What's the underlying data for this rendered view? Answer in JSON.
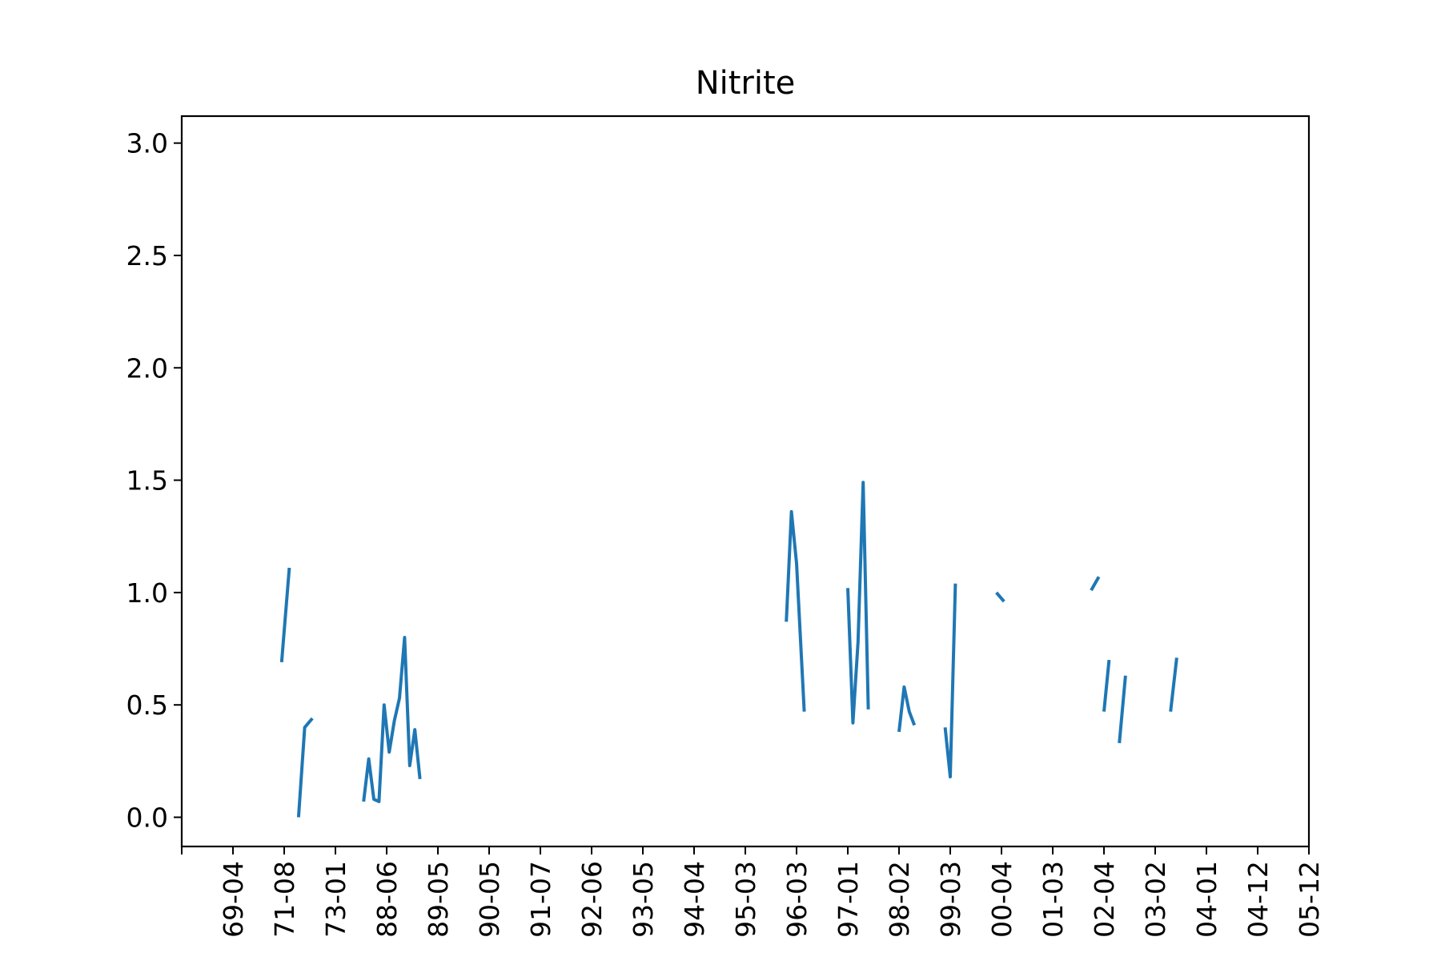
{
  "chart_data": {
    "type": "line",
    "title": "Nitrite",
    "xlabel": "",
    "ylabel": "",
    "ylim": [
      -0.13,
      3.12
    ],
    "grid": false,
    "legend": "none",
    "series_color": "#1f77b4",
    "x_ticks": [
      "69-04",
      "71-08",
      "73-01",
      "88-06",
      "89-05",
      "90-05",
      "91-07",
      "92-06",
      "93-05",
      "94-04",
      "95-03",
      "96-03",
      "97-01",
      "98-02",
      "99-03",
      "00-04",
      "01-03",
      "02-04",
      "03-02",
      "04-01",
      "04-12",
      "05-12"
    ],
    "y_ticks": [
      "0.0",
      "0.5",
      "1.0",
      "1.5",
      "2.0",
      "2.5",
      "3.0"
    ],
    "segments": [
      [
        [
          0.95,
          0.69
        ],
        [
          1.1,
          1.11
        ]
      ],
      [
        [
          1.28,
          0.0
        ],
        [
          1.4,
          0.4
        ],
        [
          1.55,
          0.44
        ]
      ],
      [
        [
          2.55,
          0.07
        ],
        [
          2.65,
          0.26
        ],
        [
          2.75,
          0.08
        ],
        [
          2.85,
          0.07
        ],
        [
          2.95,
          0.5
        ],
        [
          3.05,
          0.29
        ],
        [
          3.15,
          0.43
        ],
        [
          3.25,
          0.53
        ],
        [
          3.35,
          0.8
        ],
        [
          3.45,
          0.23
        ],
        [
          3.55,
          0.39
        ],
        [
          3.65,
          0.17
        ]
      ],
      [
        [
          10.8,
          0.87
        ],
        [
          10.9,
          1.36
        ],
        [
          11.0,
          1.13
        ],
        [
          11.15,
          0.47
        ]
      ],
      [
        [
          12.0,
          1.02
        ],
        [
          12.1,
          0.42
        ],
        [
          12.2,
          0.78
        ],
        [
          12.3,
          1.49
        ],
        [
          12.4,
          0.48
        ]
      ],
      [
        [
          13.0,
          0.38
        ],
        [
          13.1,
          0.58
        ],
        [
          13.2,
          0.47
        ],
        [
          13.3,
          0.41
        ]
      ],
      [
        [
          13.9,
          0.4
        ],
        [
          14.0,
          0.18
        ],
        [
          14.1,
          1.04
        ]
      ],
      [
        [
          14.9,
          1.0
        ],
        [
          15.05,
          0.96
        ]
      ],
      [
        [
          16.75,
          1.01
        ],
        [
          16.9,
          1.07
        ]
      ],
      [
        [
          17.0,
          0.47
        ],
        [
          17.1,
          0.7
        ]
      ],
      [
        [
          17.3,
          0.33
        ],
        [
          17.42,
          0.63
        ]
      ],
      [
        [
          18.3,
          0.47
        ],
        [
          18.42,
          0.71
        ]
      ]
    ]
  }
}
